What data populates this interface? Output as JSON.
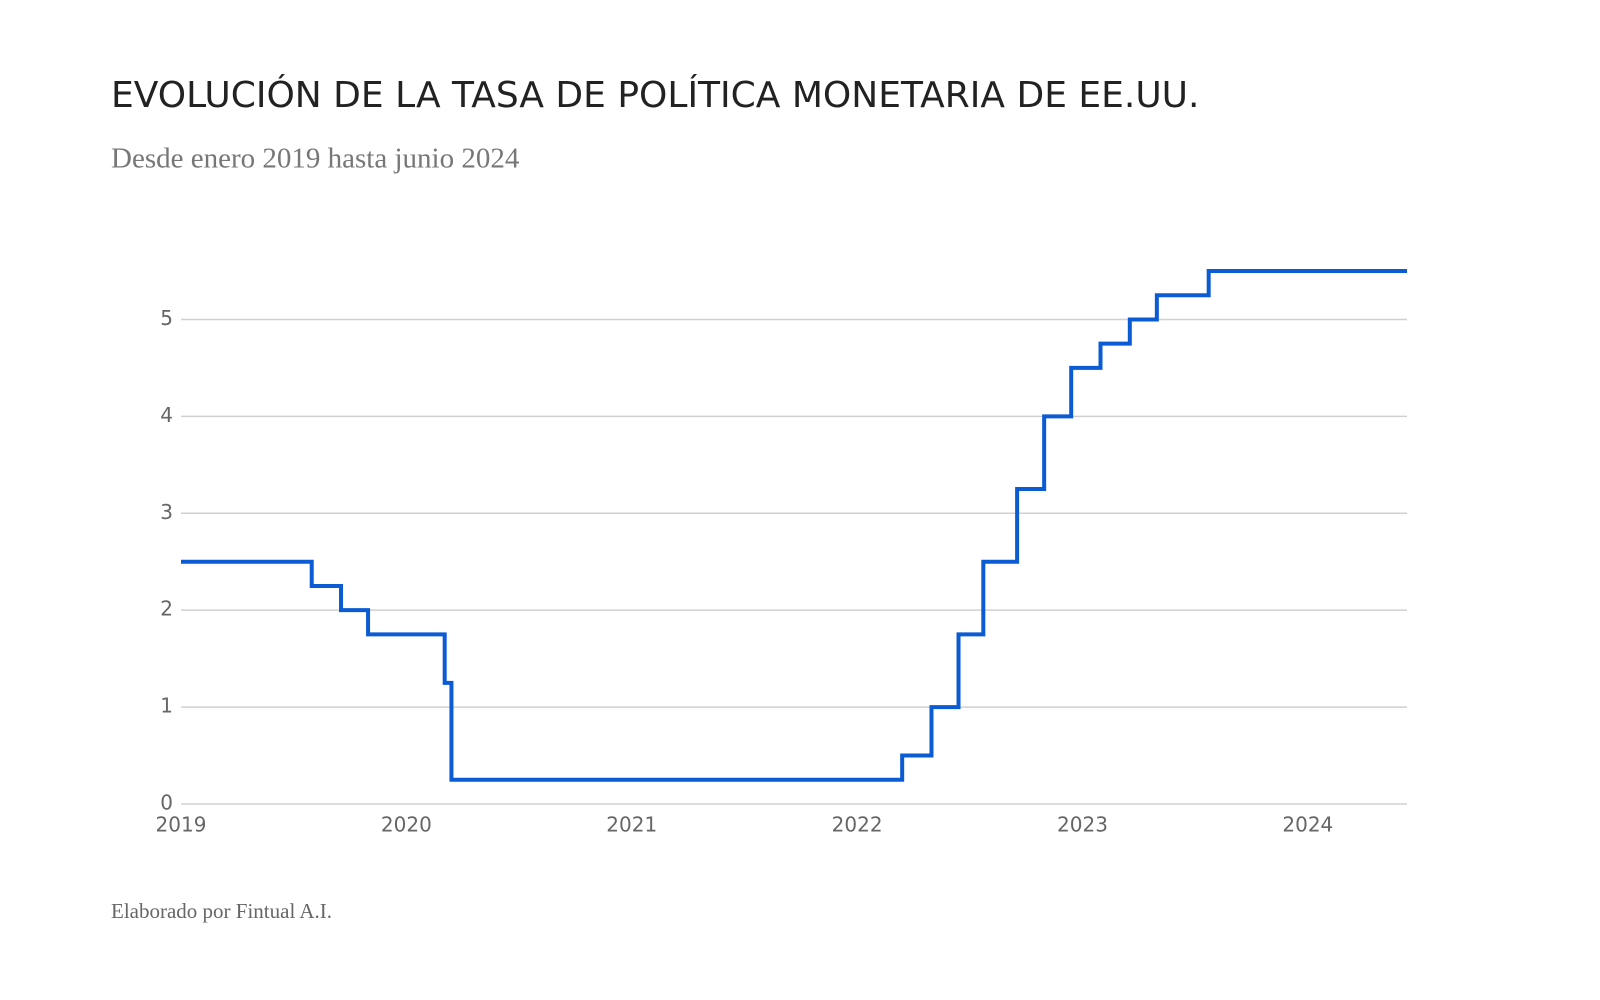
{
  "chart_data": {
    "type": "step-line",
    "title": "EVOLUCIÓN DE LA TASA DE POLÍTICA MONETARIA DE EE.UU.",
    "subtitle": "Desde enero 2019 hasta junio 2024",
    "footer": "Elaborado por Fintual A.I.",
    "x": [
      2019,
      2019.58,
      2019.71,
      2019.83,
      2020.17,
      2020.2,
      2022.2,
      2022.33,
      2022.45,
      2022.56,
      2022.71,
      2022.83,
      2022.95,
      2023.08,
      2023.21,
      2023.33,
      2023.56,
      2024.44
    ],
    "series": [
      {
        "color": "#0b5bd3",
        "values": [
          2.5,
          2.25,
          2.0,
          1.75,
          1.25,
          0.25,
          0.5,
          1.0,
          1.75,
          2.5,
          3.25,
          4.0,
          4.5,
          4.75,
          5.0,
          5.25,
          5.5,
          5.5
        ]
      }
    ],
    "xlim": [
      2019,
      2024.44
    ],
    "xticks": [
      2019,
      2020,
      2021,
      2022,
      2023,
      2024
    ],
    "ylim": [
      0,
      5.5
    ],
    "yticks": [
      0,
      1,
      2,
      3,
      4,
      5
    ],
    "grid": true,
    "step": "post"
  }
}
